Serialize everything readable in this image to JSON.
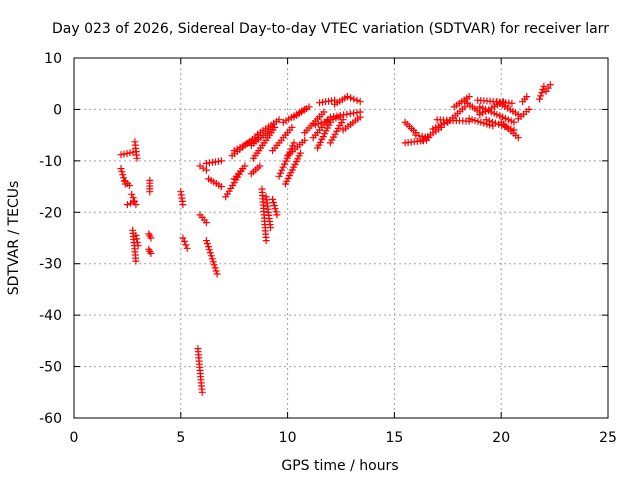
{
  "chart_data": {
    "type": "scatter",
    "title": "Day 023 of 2026, Sidereal Day-to-day VTEC variation (SDTVAR) for receiver larr",
    "xlabel": "GPS time / hours",
    "ylabel": "SDTVAR / TECUs",
    "xlim": [
      0,
      25
    ],
    "ylim": [
      -60,
      10
    ],
    "xticks": [
      "0",
      "5",
      "10",
      "15",
      "20",
      "25"
    ],
    "yticks": [
      "-60",
      "-50",
      "-40",
      "-30",
      "-20",
      "-10",
      "0",
      "10"
    ],
    "grid": true,
    "marker": "+",
    "color": "#ff0000",
    "segments": [
      [
        [
          2.2,
          -8.8
        ],
        [
          2.9,
          -8.2
        ]
      ],
      [
        [
          2.2,
          -11.5
        ],
        [
          2.4,
          -14.5
        ]
      ],
      [
        [
          2.4,
          -14.0
        ],
        [
          2.6,
          -14.8
        ]
      ],
      [
        [
          2.5,
          -18.5
        ],
        [
          2.8,
          -18.0
        ]
      ],
      [
        [
          2.7,
          -16.5
        ],
        [
          2.9,
          -18.5
        ]
      ],
      [
        [
          2.85,
          -6.3
        ],
        [
          2.95,
          -9.5
        ]
      ],
      [
        [
          2.75,
          -23.5
        ],
        [
          2.9,
          -29.5
        ]
      ],
      [
        [
          2.9,
          -24.5
        ],
        [
          3.0,
          -26.5
        ]
      ],
      [
        [
          3.55,
          -13.8
        ],
        [
          3.55,
          -16.0
        ]
      ],
      [
        [
          3.5,
          -24.2
        ],
        [
          3.6,
          -25.0
        ]
      ],
      [
        [
          3.5,
          -27.2
        ],
        [
          3.6,
          -28.0
        ]
      ],
      [
        [
          5.0,
          -16.0
        ],
        [
          5.1,
          -18.5
        ]
      ],
      [
        [
          5.1,
          -25.0
        ],
        [
          5.3,
          -27.0
        ]
      ],
      [
        [
          5.8,
          -46.5
        ],
        [
          6.0,
          -55.0
        ]
      ],
      [
        [
          5.9,
          -20.5
        ],
        [
          6.2,
          -22.0
        ]
      ],
      [
        [
          5.9,
          -11.0
        ],
        [
          6.2,
          -11.8
        ]
      ],
      [
        [
          6.2,
          -25.5
        ],
        [
          6.7,
          -32.0
        ]
      ],
      [
        [
          6.2,
          -10.5
        ],
        [
          6.9,
          -10.0
        ]
      ],
      [
        [
          6.3,
          -13.5
        ],
        [
          6.9,
          -15.0
        ]
      ],
      [
        [
          7.1,
          -17.0
        ],
        [
          7.9,
          -11.5
        ]
      ],
      [
        [
          7.5,
          -13.5
        ],
        [
          8.0,
          -11.0
        ]
      ],
      [
        [
          7.4,
          -9.0
        ],
        [
          8.6,
          -5.0
        ]
      ],
      [
        [
          7.5,
          -8.0
        ],
        [
          8.6,
          -5.5
        ]
      ],
      [
        [
          8.3,
          -7.0
        ],
        [
          9.3,
          -3.5
        ]
      ],
      [
        [
          8.6,
          -4.8
        ],
        [
          9.6,
          -2.0
        ]
      ],
      [
        [
          8.8,
          -15.5
        ],
        [
          9.0,
          -25.5
        ]
      ],
      [
        [
          9.0,
          -17.0
        ],
        [
          9.2,
          -23.0
        ]
      ],
      [
        [
          9.3,
          -17.5
        ],
        [
          9.5,
          -20.5
        ]
      ],
      [
        [
          8.3,
          -12.5
        ],
        [
          8.7,
          -11.0
        ]
      ],
      [
        [
          8.4,
          -9.5
        ],
        [
          9.4,
          -3.5
        ]
      ],
      [
        [
          9.3,
          -8.0
        ],
        [
          10.2,
          -3.5
        ]
      ],
      [
        [
          9.6,
          -13.0
        ],
        [
          10.3,
          -6.5
        ]
      ],
      [
        [
          9.9,
          -14.5
        ],
        [
          10.6,
          -8.5
        ]
      ],
      [
        [
          10.0,
          -9.0
        ],
        [
          10.8,
          -6.0
        ]
      ],
      [
        [
          9.8,
          -2.5
        ],
        [
          10.8,
          0.0
        ]
      ],
      [
        [
          10.3,
          -1.5
        ],
        [
          11.0,
          0.5
        ]
      ],
      [
        [
          10.8,
          -4.5
        ],
        [
          11.7,
          -0.5
        ]
      ],
      [
        [
          11.2,
          -5.5
        ],
        [
          11.9,
          -2.0
        ]
      ],
      [
        [
          11.3,
          -3.0
        ],
        [
          12.4,
          -1.5
        ]
      ],
      [
        [
          11.5,
          1.3
        ],
        [
          12.2,
          1.8
        ]
      ],
      [
        [
          11.4,
          -7.5
        ],
        [
          12.0,
          -2.5
        ]
      ],
      [
        [
          12.0,
          -6.5
        ],
        [
          12.6,
          -2.0
        ]
      ],
      [
        [
          12.0,
          -1.5
        ],
        [
          13.4,
          -0.5
        ]
      ],
      [
        [
          12.2,
          1.0
        ],
        [
          12.8,
          2.5
        ]
      ],
      [
        [
          12.6,
          -4.0
        ],
        [
          13.4,
          -1.5
        ]
      ],
      [
        [
          12.8,
          2.5
        ],
        [
          13.4,
          1.5
        ]
      ],
      [
        [
          15.5,
          -2.5
        ],
        [
          16.0,
          -4.5
        ]
      ],
      [
        [
          15.5,
          -6.5
        ],
        [
          16.5,
          -6.0
        ]
      ],
      [
        [
          16.0,
          -5.0
        ],
        [
          16.6,
          -5.5
        ]
      ],
      [
        [
          16.3,
          -6.0
        ],
        [
          17.2,
          -3.5
        ]
      ],
      [
        [
          16.8,
          -3.8
        ],
        [
          17.6,
          -2.2
        ]
      ],
      [
        [
          17.0,
          -2.0
        ],
        [
          18.5,
          -2.3
        ]
      ],
      [
        [
          17.5,
          -2.5
        ],
        [
          18.3,
          0.5
        ]
      ],
      [
        [
          17.8,
          0.5
        ],
        [
          18.5,
          2.5
        ]
      ],
      [
        [
          18.3,
          1.5
        ],
        [
          19.0,
          -0.5
        ]
      ],
      [
        [
          18.5,
          -1.8
        ],
        [
          19.6,
          -3.2
        ]
      ],
      [
        [
          18.9,
          1.8
        ],
        [
          20.5,
          1.2
        ]
      ],
      [
        [
          19.0,
          -1.0
        ],
        [
          20.1,
          1.5
        ]
      ],
      [
        [
          19.0,
          0.5
        ],
        [
          20.6,
          -2.5
        ]
      ],
      [
        [
          19.3,
          -2.0
        ],
        [
          20.6,
          -4.0
        ]
      ],
      [
        [
          19.8,
          1.5
        ],
        [
          20.8,
          -1.0
        ]
      ],
      [
        [
          20.0,
          -2.5
        ],
        [
          20.8,
          -5.5
        ]
      ],
      [
        [
          20.8,
          -1.8
        ],
        [
          21.3,
          0.0
        ]
      ],
      [
        [
          21.0,
          1.5
        ],
        [
          21.2,
          2.5
        ]
      ],
      [
        [
          21.8,
          2.0
        ],
        [
          22.0,
          4.5
        ]
      ],
      [
        [
          22.1,
          3.5
        ],
        [
          22.3,
          4.8
        ]
      ]
    ]
  }
}
